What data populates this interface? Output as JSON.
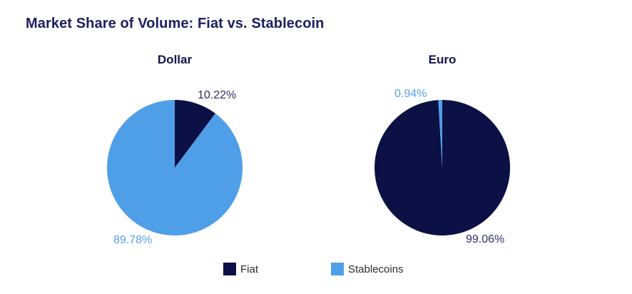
{
  "title": "Market Share of Volume: Fiat vs. Stablecoin",
  "colors": {
    "background": "#ffffff",
    "fiat": "#0b1045",
    "stablecoin": "#4f9fe8",
    "title_text": "#1c2060",
    "subtitle_text": "#10164a",
    "label_navy": "#2c3061",
    "label_blue": "#55a1e8",
    "legend_text": "#2d2d2d"
  },
  "chart_data": {
    "type": "pie",
    "title": "Market Share of Volume: Fiat vs. Stablecoin",
    "layout_hint": "two pie charts side by side, percentage labels outside slices, shared legend centered at bottom",
    "charts": [
      {
        "title": "Dollar",
        "start_angle_deg": 0,
        "direction": "clockwise",
        "slices": [
          {
            "name": "Fiat",
            "value": 10.22,
            "label": "10.22%",
            "color_key": "fiat"
          },
          {
            "name": "Stablecoins",
            "value": 89.78,
            "label": "89.78%",
            "color_key": "stablecoin"
          }
        ]
      },
      {
        "title": "Euro",
        "start_angle_deg": 0,
        "direction": "clockwise",
        "slices": [
          {
            "name": "Fiat",
            "value": 99.06,
            "label": "99.06%",
            "color_key": "fiat"
          },
          {
            "name": "Stablecoins",
            "value": 0.94,
            "label": "0.94%",
            "color_key": "stablecoin"
          }
        ]
      }
    ],
    "legend": [
      {
        "label": "Fiat",
        "color_key": "fiat"
      },
      {
        "label": "Stablecoins",
        "color_key": "stablecoin"
      }
    ]
  }
}
